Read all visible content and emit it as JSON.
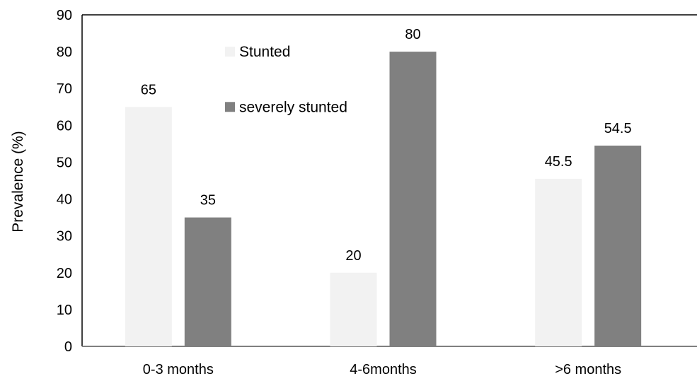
{
  "chart_data": {
    "type": "bar",
    "title": "",
    "xlabel": "",
    "ylabel": "Prevalence (%)",
    "ylim": [
      0,
      90
    ],
    "yticks": [
      0,
      10,
      20,
      30,
      40,
      50,
      60,
      70,
      80,
      90
    ],
    "categories": [
      "0-3 months",
      "4-6months",
      ">6 months"
    ],
    "series": [
      {
        "name": "Stunted",
        "values": [
          65,
          20,
          45.5
        ],
        "labels": [
          "65",
          "20",
          "45.5"
        ],
        "color": "#f2f2f2"
      },
      {
        "name": "severely stunted",
        "values": [
          35,
          80,
          54.5
        ],
        "labels": [
          "35",
          "80",
          "54.5"
        ],
        "color": "#808080"
      }
    ],
    "grid": false,
    "legend_position": "top-left inside plot"
  }
}
